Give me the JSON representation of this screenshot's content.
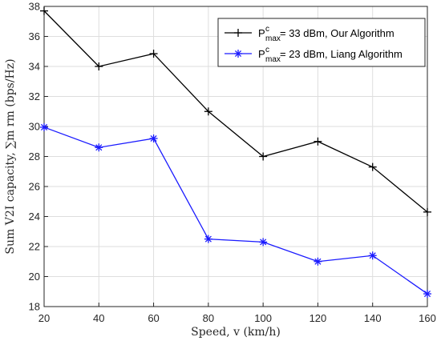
{
  "chart_data": {
    "type": "line",
    "title": "",
    "xlabel": "Speed, v (km/h)",
    "ylabel": "Sum V2I capacity, ∑m rm (bps/Hz)",
    "xlim": [
      20,
      160
    ],
    "ylim": [
      18,
      38
    ],
    "xticks": [
      "20",
      "40",
      "60",
      "80",
      "100",
      "120",
      "140",
      "160"
    ],
    "yticks": [
      "18",
      "20",
      "22",
      "24",
      "26",
      "28",
      "30",
      "32",
      "34",
      "36",
      "38"
    ],
    "grid": true,
    "legend_position": "top-right",
    "x": [
      20,
      40,
      60,
      80,
      100,
      120,
      140,
      160
    ],
    "series": [
      {
        "name": "P^c_max = 33 dBm, Our Algorithm",
        "legend": {
          "p": "P",
          "sup": "c",
          "sub": "max",
          "rest": " = 33 dBm, Our Algorithm"
        },
        "values": [
          37.7,
          34.0,
          34.85,
          31.0,
          28.0,
          29.0,
          27.3,
          24.3
        ],
        "color": "#000000",
        "marker": "plus"
      },
      {
        "name": "P^c_max = 23 dBm, Liang Algorithm",
        "legend": {
          "p": "P",
          "sup": "c",
          "sub": "max",
          "rest": " = 23 dBm, Liang Algorithm"
        },
        "values": [
          29.95,
          28.6,
          29.2,
          22.5,
          22.3,
          21.0,
          21.4,
          18.85
        ],
        "color": "#1a1aff",
        "marker": "asterisk"
      }
    ]
  }
}
